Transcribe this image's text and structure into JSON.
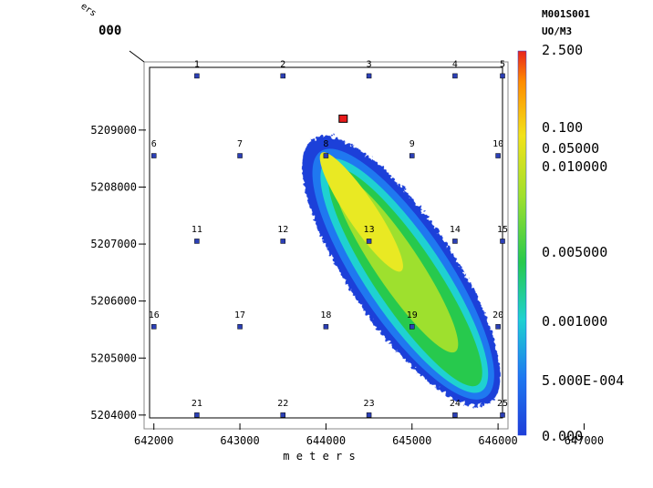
{
  "header": {
    "run_id": "M001S001",
    "units": "UO/M3",
    "axis_fragment": "ers"
  },
  "chart_data": {
    "type": "heatmap",
    "title": "",
    "xlabel": "m e t e r s",
    "ylabel": "",
    "xlim": [
      641950,
      646700
    ],
    "ylim": [
      5203950,
      5210100
    ],
    "x_ticks": [
      642000,
      643000,
      644000,
      645000,
      646000,
      647000
    ],
    "x_tick_labels": [
      "642000",
      "643000",
      "644000",
      "645000",
      "646000",
      "647000"
    ],
    "y_ticks": [
      5204000,
      5205000,
      5206000,
      5207000,
      5208000,
      5209000
    ],
    "y_tick_labels": [
      "5204000",
      "5205000",
      "5206000",
      "5207000",
      "5208000",
      "5209000"
    ],
    "source": {
      "x": 644200,
      "y": 5209200,
      "color": "#e81a1a"
    },
    "receptor_color": "#2b3fb5",
    "receptors": [
      {
        "id": "1",
        "x": 642500,
        "y": 5209950
      },
      {
        "id": "2",
        "x": 643500,
        "y": 5209950
      },
      {
        "id": "3",
        "x": 644500,
        "y": 5209950
      },
      {
        "id": "4",
        "x": 645500,
        "y": 5209950
      },
      {
        "id": "5",
        "x": 646500,
        "y": 5209950
      },
      {
        "id": "6",
        "x": 642000,
        "y": 5208550
      },
      {
        "id": "7",
        "x": 643000,
        "y": 5208550
      },
      {
        "id": "8",
        "x": 644000,
        "y": 5208550
      },
      {
        "id": "9",
        "x": 645000,
        "y": 5208550
      },
      {
        "id": "10",
        "x": 646000,
        "y": 5208550
      },
      {
        "id": "11",
        "x": 642500,
        "y": 5207050
      },
      {
        "id": "12",
        "x": 643500,
        "y": 5207050
      },
      {
        "id": "13",
        "x": 644500,
        "y": 5207050
      },
      {
        "id": "14",
        "x": 645500,
        "y": 5207050
      },
      {
        "id": "15",
        "x": 646500,
        "y": 5207050
      },
      {
        "id": "16",
        "x": 642000,
        "y": 5205550
      },
      {
        "id": "17",
        "x": 643000,
        "y": 5205550
      },
      {
        "id": "18",
        "x": 644000,
        "y": 5205550
      },
      {
        "id": "19",
        "x": 645000,
        "y": 5205550
      },
      {
        "id": "20",
        "x": 646000,
        "y": 5205550
      },
      {
        "id": "21",
        "x": 642500,
        "y": 5204000
      },
      {
        "id": "22",
        "x": 643500,
        "y": 5204000
      },
      {
        "id": "23",
        "x": 644500,
        "y": 5204000
      },
      {
        "id": "24",
        "x": 645500,
        "y": 5204000
      },
      {
        "id": "25",
        "x": 646500,
        "y": 5204000
      }
    ],
    "plume": {
      "start": {
        "x": 643950,
        "y": 5208600
      },
      "end": {
        "x": 645800,
        "y": 5204450
      },
      "half_width_start": 300,
      "half_width_end": 700
    },
    "colorbar": {
      "labels": [
        "2.500",
        "0.100",
        "0.05000",
        "0.010000",
        "0.005000",
        "0.001000",
        "5.000E-004",
        "0.000"
      ],
      "colors": [
        "#e8241e",
        "#ff8c00",
        "#f2e21a",
        "#9ee02e",
        "#27c94d",
        "#1fd1d1",
        "#1f78f0",
        "#1f3fd9"
      ]
    }
  }
}
